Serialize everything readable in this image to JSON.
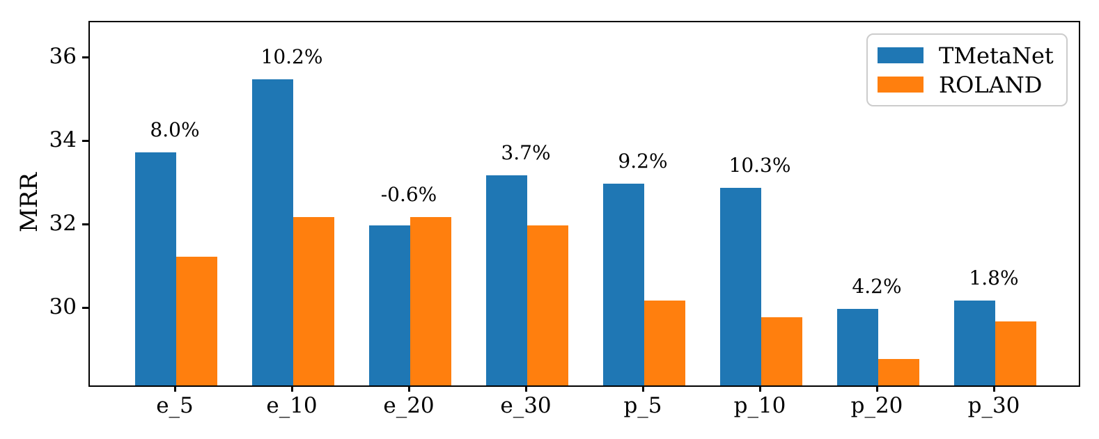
{
  "figure": {
    "background": "#ffffff"
  },
  "chart_data": {
    "type": "bar",
    "title": "",
    "xlabel": "",
    "ylabel": "MRR",
    "categories": [
      "e_5",
      "e_10",
      "e_20",
      "e_30",
      "p_5",
      "p_10",
      "p_20",
      "p_30"
    ],
    "series": [
      {
        "name": "TMetaNet",
        "color": "#1f77b4",
        "values": [
          33.75,
          35.5,
          32.0,
          33.2,
          33.0,
          32.9,
          30.0,
          30.2
        ]
      },
      {
        "name": "ROLAND",
        "color": "#ff7f0e",
        "values": [
          31.25,
          32.2,
          32.2,
          32.0,
          30.2,
          29.8,
          28.8,
          29.7
        ]
      }
    ],
    "annotations": [
      "8.0%",
      "10.2%",
      "-0.6%",
      "3.7%",
      "9.2%",
      "10.3%",
      "4.2%",
      "1.8%"
    ],
    "yticks": [
      30,
      32,
      34,
      36
    ],
    "ylim": [
      28.17,
      36.87
    ],
    "grid": false,
    "legend_position": "upper right"
  }
}
